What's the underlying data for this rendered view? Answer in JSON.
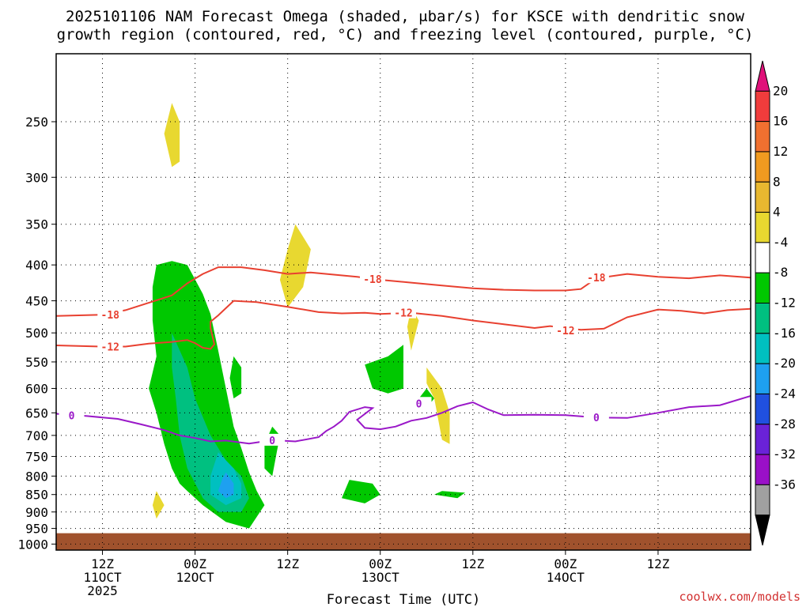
{
  "chart_data": {
    "type": "heatmap",
    "title_line1": "2025101106 NAM Forecast Omega (shaded, μbar/s) for KSCE with dendritic snow",
    "title_line2": "growth region (contoured, red, °C) and freezing level (contoured, purple, °C)",
    "xlabel": "Forecast Time (UTC)",
    "credit": "coolwx.com/models",
    "x_range_hours": [
      -6,
      84
    ],
    "x_ticks": [
      {
        "hour": 0,
        "line1": "12Z",
        "line2": "11OCT",
        "line3": "2025"
      },
      {
        "hour": 12,
        "line1": "00Z",
        "line2": "12OCT",
        "line3": ""
      },
      {
        "hour": 24,
        "line1": "12Z",
        "line2": "",
        "line3": ""
      },
      {
        "hour": 36,
        "line1": "00Z",
        "line2": "13OCT",
        "line3": ""
      },
      {
        "hour": 48,
        "line1": "12Z",
        "line2": "",
        "line3": ""
      },
      {
        "hour": 60,
        "line1": "00Z",
        "line2": "14OCT",
        "line3": ""
      },
      {
        "hour": 72,
        "line1": "12Z",
        "line2": "",
        "line3": ""
      }
    ],
    "y_axis": "pressure (hPa), inverted log",
    "y_range": [
      200,
      1020
    ],
    "y_ticks": [
      250,
      300,
      350,
      400,
      450,
      500,
      550,
      600,
      650,
      700,
      750,
      800,
      850,
      900,
      950,
      1000
    ],
    "ground_pressure": 965,
    "colorbar": {
      "labels": [
        "20",
        "16",
        "12",
        "8",
        "4",
        "-4",
        "-8",
        "-12",
        "-16",
        "-20",
        "-24",
        "-28",
        "-32",
        "-36"
      ],
      "colors": [
        "#e0117a",
        "#f03c3c",
        "#f07030",
        "#f09a20",
        "#e8b830",
        "#e8d830",
        "#ffffff",
        "#00c800",
        "#00c080",
        "#00c0c0",
        "#1ea0f0",
        "#2050e0",
        "#6a22d8",
        "#9a10c8",
        "#a0a0a0",
        "#000000"
      ]
    },
    "contours": [
      {
        "color": "#e84030",
        "label": "-18",
        "points": [
          [
            -6,
            473
          ],
          [
            0,
            471
          ],
          [
            3,
            464
          ],
          [
            6,
            453
          ],
          [
            9,
            442
          ],
          [
            11,
            425
          ],
          [
            13,
            412
          ],
          [
            15,
            403
          ],
          [
            18,
            403
          ],
          [
            21,
            407
          ],
          [
            24,
            412
          ],
          [
            27,
            410
          ],
          [
            30,
            413
          ],
          [
            33,
            416
          ],
          [
            36,
            420
          ],
          [
            40,
            424
          ],
          [
            44,
            428
          ],
          [
            48,
            432
          ],
          [
            52,
            434
          ],
          [
            56,
            435
          ],
          [
            60,
            435
          ],
          [
            62,
            433
          ],
          [
            64,
            418
          ],
          [
            68,
            412
          ],
          [
            72,
            416
          ],
          [
            76,
            418
          ],
          [
            80,
            414
          ],
          [
            84,
            417
          ]
        ],
        "label_at": [
          [
            1,
            471
          ],
          [
            35,
            419
          ],
          [
            64,
            417
          ]
        ]
      },
      {
        "color": "#e84030",
        "label": "-12",
        "points": [
          [
            -6,
            521
          ],
          [
            0,
            523
          ],
          [
            3,
            523
          ],
          [
            6,
            518
          ],
          [
            9,
            515
          ],
          [
            11,
            512
          ],
          [
            12,
            517
          ],
          [
            13,
            525
          ],
          [
            14,
            527
          ],
          [
            14.5,
            519
          ],
          [
            14,
            492
          ],
          [
            14,
            482
          ],
          [
            15,
            472
          ],
          [
            17,
            450
          ],
          [
            20,
            452
          ],
          [
            24,
            459
          ],
          [
            28,
            467
          ],
          [
            31,
            469
          ],
          [
            34,
            468
          ],
          [
            36,
            470
          ],
          [
            40,
            468
          ],
          [
            44,
            473
          ],
          [
            48,
            480
          ],
          [
            52,
            486
          ],
          [
            56,
            492
          ],
          [
            58,
            489
          ],
          [
            62,
            495
          ],
          [
            65,
            493
          ],
          [
            68,
            475
          ],
          [
            72,
            463
          ],
          [
            75,
            465
          ],
          [
            78,
            469
          ],
          [
            81,
            464
          ],
          [
            84,
            462
          ]
        ],
        "label_at": [
          [
            1,
            523
          ],
          [
            39,
            468
          ],
          [
            60,
            496
          ]
        ]
      },
      {
        "color": "#9a18c8",
        "label": "0",
        "points": [
          [
            -6,
            652
          ],
          [
            -2,
            657
          ],
          [
            2,
            663
          ],
          [
            5,
            675
          ],
          [
            8,
            688
          ],
          [
            10,
            700
          ],
          [
            12,
            706
          ],
          [
            14,
            714
          ],
          [
            16,
            712
          ],
          [
            19,
            719
          ],
          [
            22,
            711
          ],
          [
            25,
            714
          ],
          [
            28,
            704
          ],
          [
            29,
            690
          ],
          [
            30,
            680
          ],
          [
            31,
            667
          ],
          [
            32,
            648
          ],
          [
            34,
            638
          ],
          [
            35,
            640
          ],
          [
            33,
            665
          ],
          [
            34,
            683
          ],
          [
            36,
            686
          ],
          [
            38,
            680
          ],
          [
            40,
            667
          ],
          [
            42,
            661
          ],
          [
            44,
            650
          ],
          [
            46,
            636
          ],
          [
            48,
            628
          ],
          [
            50,
            643
          ],
          [
            52,
            655
          ],
          [
            56,
            654
          ],
          [
            60,
            655
          ],
          [
            64,
            660
          ],
          [
            68,
            661
          ],
          [
            72,
            650
          ],
          [
            76,
            638
          ],
          [
            80,
            634
          ],
          [
            84,
            615
          ]
        ],
        "label_at": [
          [
            -4,
            655
          ],
          [
            22,
            711
          ],
          [
            41,
            630
          ],
          [
            64,
            660
          ]
        ]
      }
    ],
    "omega_regions": [
      {
        "value": "-4 to -8",
        "color": "#00c800",
        "poly": [
          [
            7,
            400
          ],
          [
            9,
            395
          ],
          [
            11,
            400
          ],
          [
            13,
            440
          ],
          [
            14,
            470
          ],
          [
            15,
            530
          ],
          [
            16,
            600
          ],
          [
            17,
            680
          ],
          [
            18,
            730
          ],
          [
            19,
            790
          ],
          [
            20,
            840
          ],
          [
            21,
            880
          ],
          [
            19,
            950
          ],
          [
            16,
            930
          ],
          [
            13,
            880
          ],
          [
            11,
            840
          ],
          [
            10,
            820
          ],
          [
            9,
            780
          ],
          [
            8,
            720
          ],
          [
            7,
            650
          ],
          [
            6,
            600
          ],
          [
            7,
            540
          ],
          [
            6.5,
            480
          ],
          [
            6.5,
            430
          ]
        ]
      },
      {
        "value": "-8 to -12",
        "color": "#00c080",
        "poly": [
          [
            9,
            500
          ],
          [
            11,
            560
          ],
          [
            12,
            620
          ],
          [
            14,
            700
          ],
          [
            16,
            760
          ],
          [
            18,
            800
          ],
          [
            19,
            860
          ],
          [
            18,
            900
          ],
          [
            15,
            900
          ],
          [
            13,
            860
          ],
          [
            11,
            780
          ],
          [
            10,
            700
          ],
          [
            9.5,
            620
          ],
          [
            9,
            560
          ]
        ]
      },
      {
        "value": "-12 to -16",
        "color": "#00c0c0",
        "poly": [
          [
            15,
            740
          ],
          [
            17,
            780
          ],
          [
            18,
            820
          ],
          [
            18,
            860
          ],
          [
            16,
            880
          ],
          [
            14,
            850
          ],
          [
            14,
            800
          ]
        ]
      },
      {
        "value": "-16 to -20",
        "color": "#1ea0f0",
        "poly": [
          [
            16,
            790
          ],
          [
            17,
            820
          ],
          [
            17,
            850
          ],
          [
            16,
            860
          ],
          [
            15,
            840
          ],
          [
            15.5,
            810
          ]
        ]
      },
      {
        "value": "-4 to -8",
        "color": "#00c800",
        "poly": [
          [
            17,
            540
          ],
          [
            18,
            560
          ],
          [
            18,
            610
          ],
          [
            17,
            620
          ],
          [
            16.5,
            580
          ]
        ]
      },
      {
        "value": "-4 to -8",
        "color": "#00c800",
        "poly": [
          [
            22,
            680
          ],
          [
            23,
            700
          ],
          [
            22,
            800
          ],
          [
            21,
            780
          ],
          [
            21,
            720
          ]
        ]
      },
      {
        "value": "-4 to -8",
        "color": "#00c800",
        "poly": [
          [
            34,
            555
          ],
          [
            37,
            540
          ],
          [
            39,
            520
          ],
          [
            39,
            600
          ],
          [
            37,
            610
          ],
          [
            35,
            600
          ]
        ]
      },
      {
        "value": "-4 to -8",
        "color": "#00c800",
        "poly": [
          [
            32,
            810
          ],
          [
            35,
            820
          ],
          [
            36,
            850
          ],
          [
            34,
            875
          ],
          [
            31,
            860
          ]
        ]
      },
      {
        "value": "-4 to -8",
        "color": "#00c800",
        "poly": [
          [
            42,
            600
          ],
          [
            43,
            620
          ],
          [
            42,
            640
          ],
          [
            41,
            620
          ]
        ]
      },
      {
        "value": "-4 to -8",
        "color": "#00c800",
        "poly": [
          [
            44,
            840
          ],
          [
            47,
            845
          ],
          [
            46,
            860
          ],
          [
            43,
            850
          ]
        ]
      },
      {
        "value": "4 to 8",
        "color": "#e8d830",
        "poly": [
          [
            9,
            235
          ],
          [
            10,
            250
          ],
          [
            10,
            285
          ],
          [
            9,
            290
          ],
          [
            8,
            260
          ]
        ]
      },
      {
        "value": "4 to 8",
        "color": "#e8d830",
        "poly": [
          [
            25,
            350
          ],
          [
            27,
            380
          ],
          [
            26,
            430
          ],
          [
            24,
            460
          ],
          [
            23,
            420
          ],
          [
            24,
            380
          ]
        ]
      },
      {
        "value": "4 to 8",
        "color": "#e8d830",
        "poly": [
          [
            40,
            460
          ],
          [
            41,
            480
          ],
          [
            40,
            530
          ],
          [
            39.5,
            490
          ]
        ]
      },
      {
        "value": "4 to 8",
        "color": "#e8d830",
        "poly": [
          [
            42,
            560
          ],
          [
            44,
            600
          ],
          [
            45,
            650
          ],
          [
            45,
            720
          ],
          [
            44,
            710
          ],
          [
            43,
            620
          ],
          [
            42,
            590
          ]
        ]
      },
      {
        "value": "4 to 8",
        "color": "#e8d830",
        "poly": [
          [
            7,
            840
          ],
          [
            8,
            880
          ],
          [
            7,
            920
          ],
          [
            6.5,
            880
          ]
        ]
      }
    ]
  }
}
